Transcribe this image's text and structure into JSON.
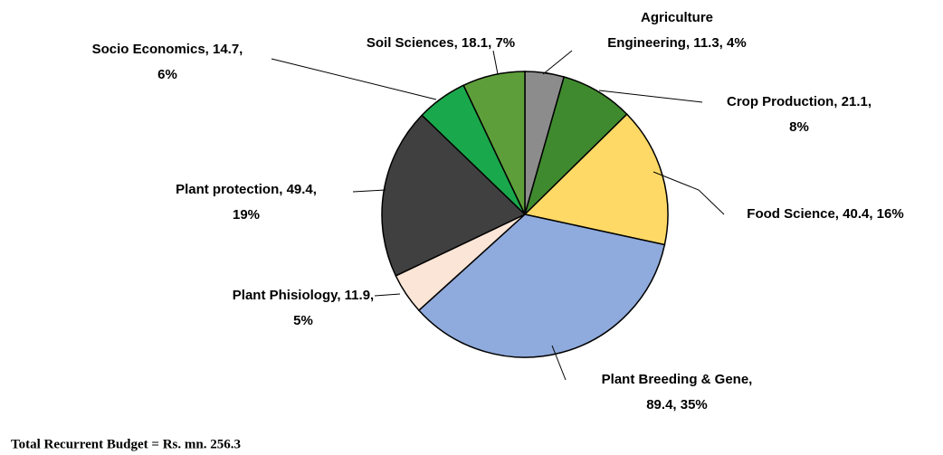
{
  "chart_data": {
    "type": "pie",
    "values": [
      11.3,
      21.1,
      40.4,
      89.4,
      11.9,
      49.4,
      14.7,
      18.1
    ],
    "value_labels": [
      [
        "Agriculture",
        "Engineering, 11.3, 4%"
      ],
      [
        "Crop Production, 21.1,",
        "8%"
      ],
      [
        "Food Science, 40.4, 16%"
      ],
      [
        "Plant Breeding & Gene,",
        "89.4, 35%"
      ],
      [
        "Plant Phisiology, 11.9,",
        "5%"
      ],
      [
        "Plant protection, 49.4,",
        "19%"
      ],
      [
        "Socio Economics, 14.7,",
        "6%"
      ],
      [
        "Soil Sciences, 18.1, 7%"
      ]
    ],
    "colors": [
      "#8c8c8c",
      "#3f8a2e",
      "#ffd966",
      "#8faadc",
      "#fbe5d6",
      "#404040",
      "#1aa84c",
      "#5e9e3a"
    ],
    "note": "Total Recurrent Budget = Rs. mn. 256.3"
  }
}
